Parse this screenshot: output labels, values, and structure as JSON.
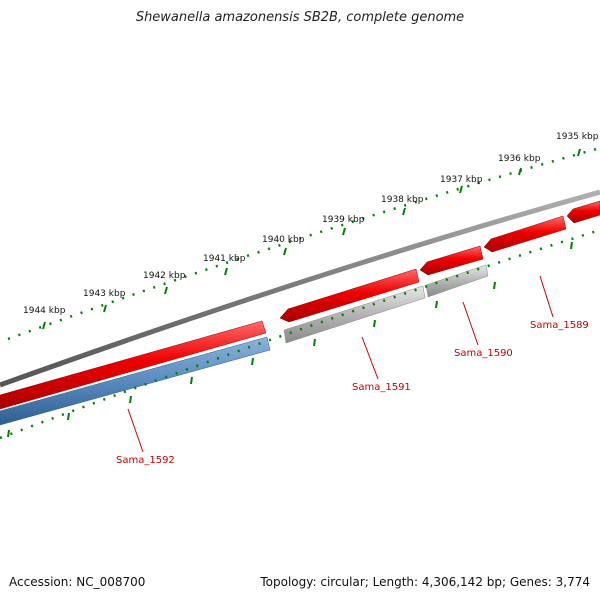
{
  "title": "Shewanella amazonensis SB2B, complete genome",
  "footer": {
    "accession": "Accession: NC_008700",
    "summary": "Topology: circular; Length: 4,306,142 bp; Genes: 3,774"
  },
  "scale_labels": [
    "1935 kbp",
    "1936 kbp",
    "1937 kbp",
    "1938 kbp",
    "1939 kbp",
    "1940 kbp",
    "1941 kbp",
    "1942 kbp",
    "1943 kbp",
    "1944 kbp"
  ],
  "gene_labels": [
    "Sama_1589",
    "Sama_1590",
    "Sama_1591",
    "Sama_1592"
  ],
  "colors": {
    "backbone": "#7a7a7a",
    "forward_gene": "#dd0000",
    "reverse_gene_gray": "#aaaaaa",
    "reverse_gene_blue": "#4f7fad",
    "tick": "#008000",
    "gene_label": "#cc0000"
  }
}
